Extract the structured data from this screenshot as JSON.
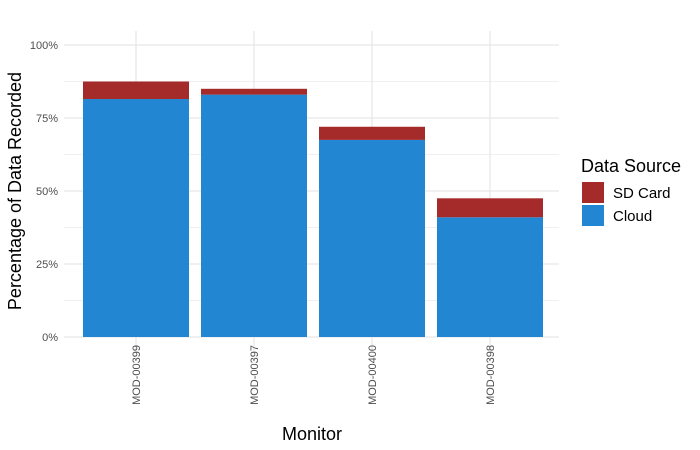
{
  "chart_data": {
    "type": "bar",
    "stacked": true,
    "categories": [
      "MOD-00399",
      "MOD-00397",
      "MOD-00400",
      "MOD-00398"
    ],
    "series": [
      {
        "name": "Cloud",
        "color": "#2286d2",
        "values": [
          81.5,
          83.0,
          67.5,
          41.0
        ]
      },
      {
        "name": "SD Card",
        "color": "#a52a2a",
        "values": [
          6.0,
          2.0,
          4.5,
          6.5
        ]
      }
    ],
    "xlabel": "Monitor",
    "ylabel": "Percentage of Data Recorded",
    "ylim": [
      0,
      100
    ],
    "yticks": [
      0,
      25,
      50,
      75,
      100
    ],
    "ytick_labels": [
      "0%",
      "25%",
      "50%",
      "75%",
      "100%"
    ],
    "grid": true,
    "legend": {
      "title": "Data Source",
      "position": "right",
      "entries": [
        "SD Card",
        "Cloud"
      ]
    }
  }
}
